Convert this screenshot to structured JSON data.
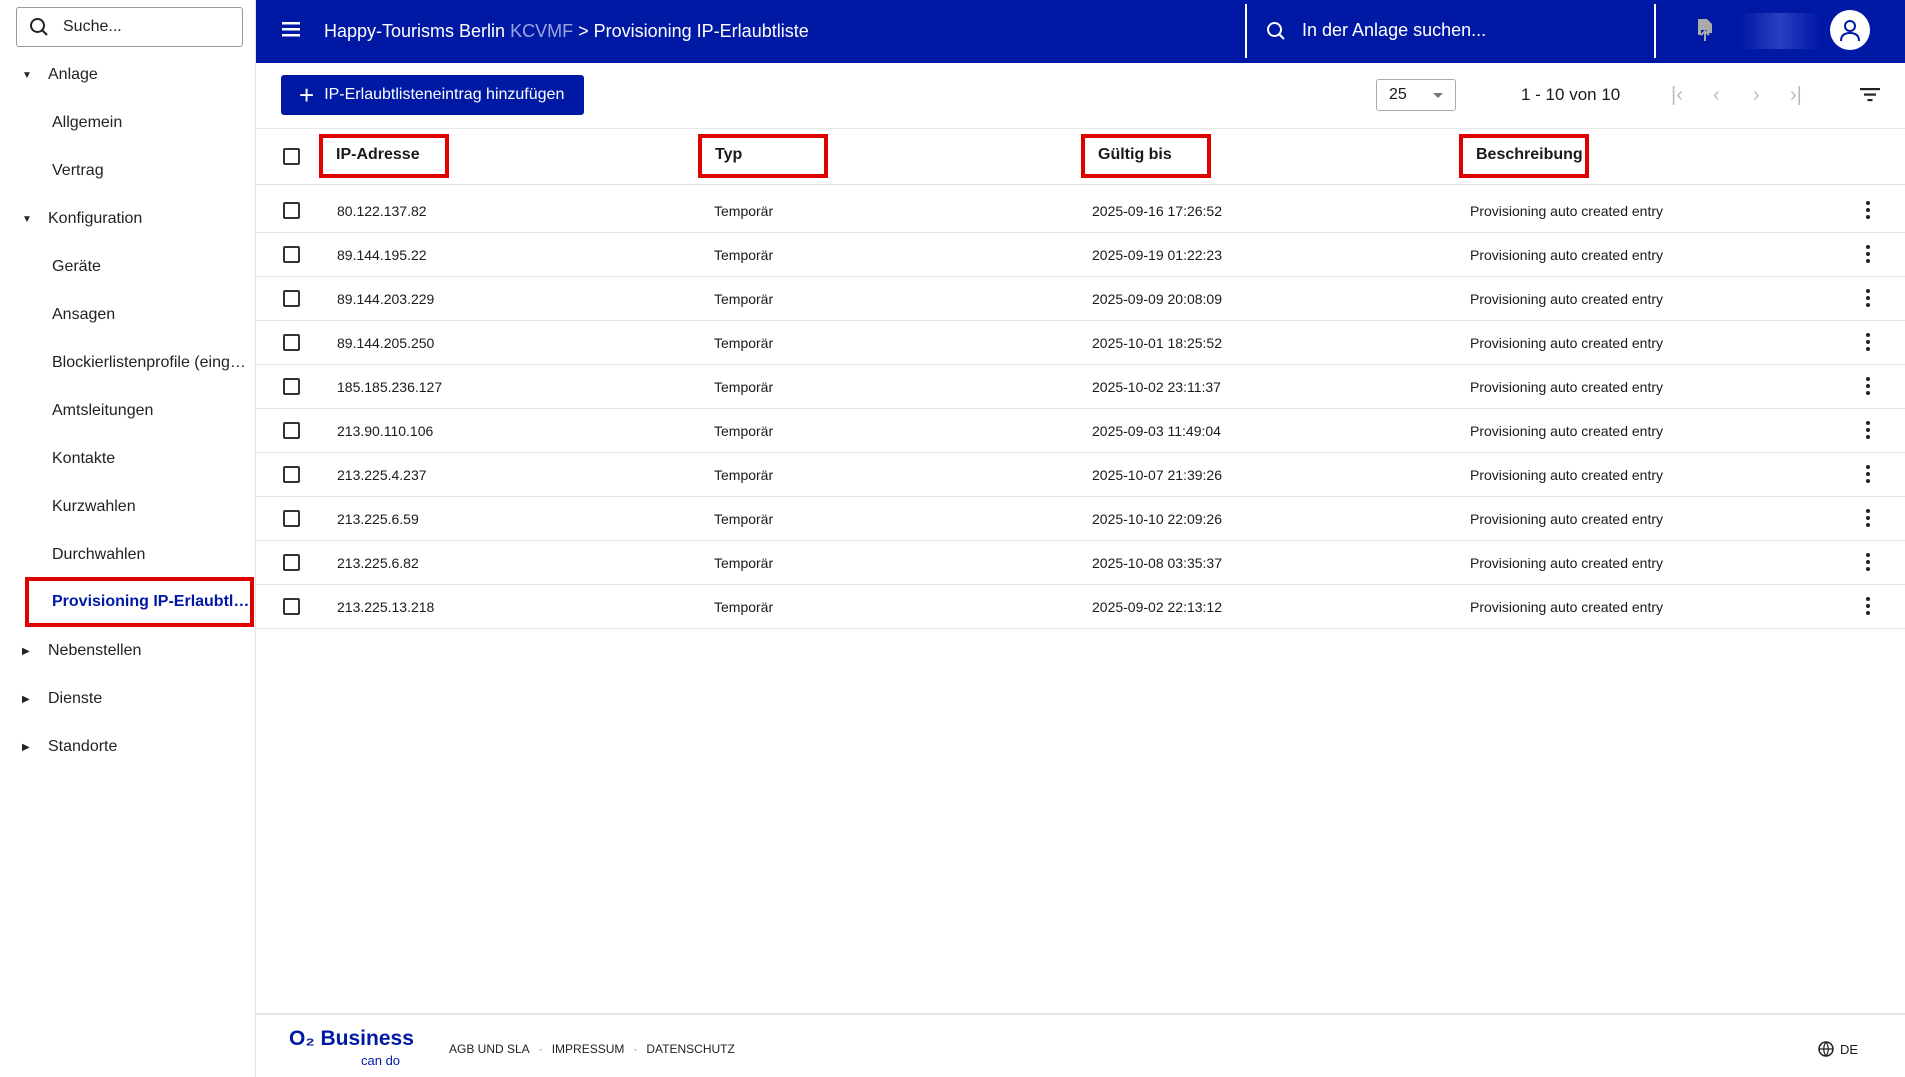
{
  "sidebar": {
    "search_placeholder": "Suche...",
    "groups": [
      {
        "label": "Anlage",
        "expanded": true
      },
      {
        "label": "Konfiguration",
        "expanded": true
      },
      {
        "label": "Nebenstellen",
        "expanded": false
      },
      {
        "label": "Dienste",
        "expanded": false
      },
      {
        "label": "Standorte",
        "expanded": false
      }
    ],
    "anlage_items": [
      "Allgemein",
      "Vertrag"
    ],
    "konfiguration_items": [
      "Geräte",
      "Ansagen",
      "Blockierlistenprofile (eing…",
      "Amtsleitungen",
      "Kontakte",
      "Kurzwahlen",
      "Durchwahlen"
    ],
    "active_item": "Provisioning IP-Erlaubtli..."
  },
  "header": {
    "org": "Happy-Tourisms Berlin",
    "code": "KCVMF",
    "separator": ">",
    "page": "Provisioning IP-Erlaubtliste",
    "search_placeholder": "In der Anlage suchen..."
  },
  "toolbar": {
    "add_label": "IP-Erlaubtlisteneintrag hinzufügen",
    "page_size": "25",
    "range": "1 - 10 von 10"
  },
  "table": {
    "columns": [
      "IP-Adresse",
      "Typ",
      "Gültig bis",
      "Beschreibung"
    ],
    "rows": [
      [
        "80.122.137.82",
        "Temporär",
        "2025-09-16 17:26:52",
        "Provisioning auto created entry"
      ],
      [
        "89.144.195.22",
        "Temporär",
        "2025-09-19 01:22:23",
        "Provisioning auto created entry"
      ],
      [
        "89.144.203.229",
        "Temporär",
        "2025-09-09 20:08:09",
        "Provisioning auto created entry"
      ],
      [
        "89.144.205.250",
        "Temporär",
        "2025-10-01 18:25:52",
        "Provisioning auto created entry"
      ],
      [
        "185.185.236.127",
        "Temporär",
        "2025-10-02 23:11:37",
        "Provisioning auto created entry"
      ],
      [
        "213.90.110.106",
        "Temporär",
        "2025-09-03 11:49:04",
        "Provisioning auto created entry"
      ],
      [
        "213.225.4.237",
        "Temporär",
        "2025-10-07 21:39:26",
        "Provisioning auto created entry"
      ],
      [
        "213.225.6.59",
        "Temporär",
        "2025-10-10 22:09:26",
        "Provisioning auto created entry"
      ],
      [
        "213.225.6.82",
        "Temporär",
        "2025-10-08 03:35:37",
        "Provisioning auto created entry"
      ],
      [
        "213.225.13.218",
        "Temporär",
        "2025-09-02 22:13:12",
        "Provisioning auto created entry"
      ]
    ]
  },
  "footer": {
    "brand": "O₂ Business",
    "tagline": "can do",
    "links": [
      "AGB UND SLA",
      "IMPRESSUM",
      "DATENSCHUTZ"
    ],
    "language": "DE"
  },
  "colors": {
    "brand": "#0019a5",
    "highlight": "#e00000"
  }
}
